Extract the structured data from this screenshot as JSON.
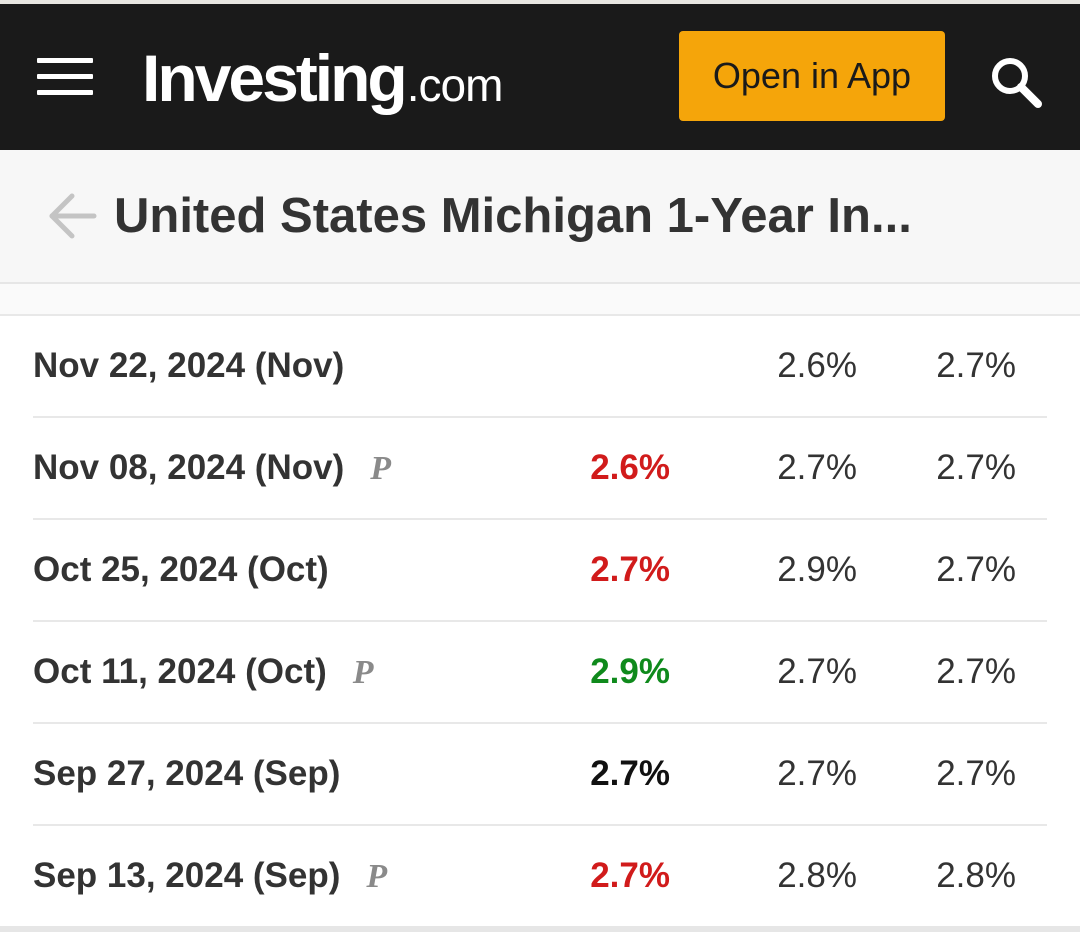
{
  "header": {
    "logo_main": "Investing",
    "logo_tld": ".com",
    "open_app_label": "Open in App",
    "icons": {
      "menu": "hamburger-icon",
      "search": "search-icon"
    },
    "colors": {
      "background": "#1a1a1a",
      "accent": "#f5a50a"
    }
  },
  "titlebar": {
    "back_icon": "back-arrow-icon",
    "title": "United States Michigan 1-Year In..."
  },
  "table": {
    "rows": [
      {
        "date": "Nov 22, 2024 (Nov)",
        "preliminary": "",
        "actual": "",
        "actual_trend": "none",
        "forecast": "2.6%",
        "previous": "2.7%"
      },
      {
        "date": "Nov 08, 2024 (Nov)",
        "preliminary": "P",
        "actual": "2.6%",
        "actual_trend": "neg",
        "forecast": "2.7%",
        "previous": "2.7%"
      },
      {
        "date": "Oct 25, 2024 (Oct)",
        "preliminary": "",
        "actual": "2.7%",
        "actual_trend": "neg",
        "forecast": "2.9%",
        "previous": "2.7%"
      },
      {
        "date": "Oct 11, 2024 (Oct)",
        "preliminary": "P",
        "actual": "2.9%",
        "actual_trend": "pos",
        "forecast": "2.7%",
        "previous": "2.7%"
      },
      {
        "date": "Sep 27, 2024 (Sep)",
        "preliminary": "",
        "actual": "2.7%",
        "actual_trend": "neutral",
        "forecast": "2.7%",
        "previous": "2.7%"
      },
      {
        "date": "Sep 13, 2024 (Sep)",
        "preliminary": "P",
        "actual": "2.7%",
        "actual_trend": "neg",
        "forecast": "2.8%",
        "previous": "2.8%"
      }
    ],
    "colors": {
      "neg": "#d11b1b",
      "pos": "#0f8a1c",
      "neutral": "#111111"
    }
  }
}
